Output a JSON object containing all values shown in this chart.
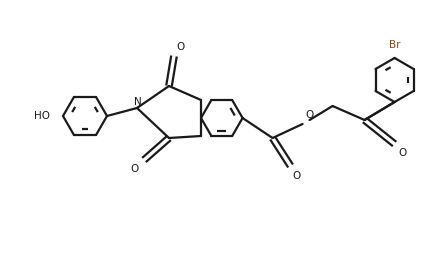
{
  "background_color": "#ffffff",
  "line_color": "#1a1a1a",
  "br_color": "#8B4513",
  "line_width": 1.6,
  "figsize": [
    4.47,
    2.58
  ],
  "dpi": 100,
  "xlim": [
    0,
    4.47
  ],
  "ylim": [
    0,
    2.58
  ]
}
